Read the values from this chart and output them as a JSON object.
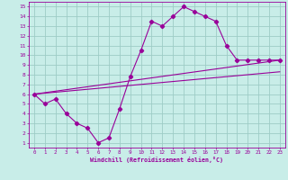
{
  "xlabel": "Windchill (Refroidissement éolien,°C)",
  "xlim": [
    -0.5,
    23.5
  ],
  "ylim": [
    0.5,
    15.5
  ],
  "xticks": [
    0,
    1,
    2,
    3,
    4,
    5,
    6,
    7,
    8,
    9,
    10,
    11,
    12,
    13,
    14,
    15,
    16,
    17,
    18,
    19,
    20,
    21,
    22,
    23
  ],
  "yticks": [
    1,
    2,
    3,
    4,
    5,
    6,
    7,
    8,
    9,
    10,
    11,
    12,
    13,
    14,
    15
  ],
  "background_color": "#c8ede8",
  "grid_color": "#9dccc6",
  "line_color": "#990099",
  "line1_x": [
    0,
    1,
    2,
    3,
    4,
    5,
    6,
    7,
    8,
    9,
    10,
    11,
    12,
    13,
    14,
    15,
    16,
    17,
    18,
    19,
    20,
    21,
    22,
    23
  ],
  "line1_y": [
    6.0,
    5.0,
    5.5,
    4.0,
    3.0,
    2.5,
    1.0,
    1.5,
    4.5,
    7.8,
    10.5,
    13.5,
    13.0,
    14.0,
    15.0,
    14.5,
    14.0,
    13.5,
    11.0,
    9.5,
    9.5,
    9.5,
    9.5,
    9.5
  ],
  "line2_x": [
    0,
    23
  ],
  "line2_y": [
    6.0,
    9.5
  ],
  "line3_x": [
    0,
    23
  ],
  "line3_y": [
    6.0,
    8.3
  ]
}
